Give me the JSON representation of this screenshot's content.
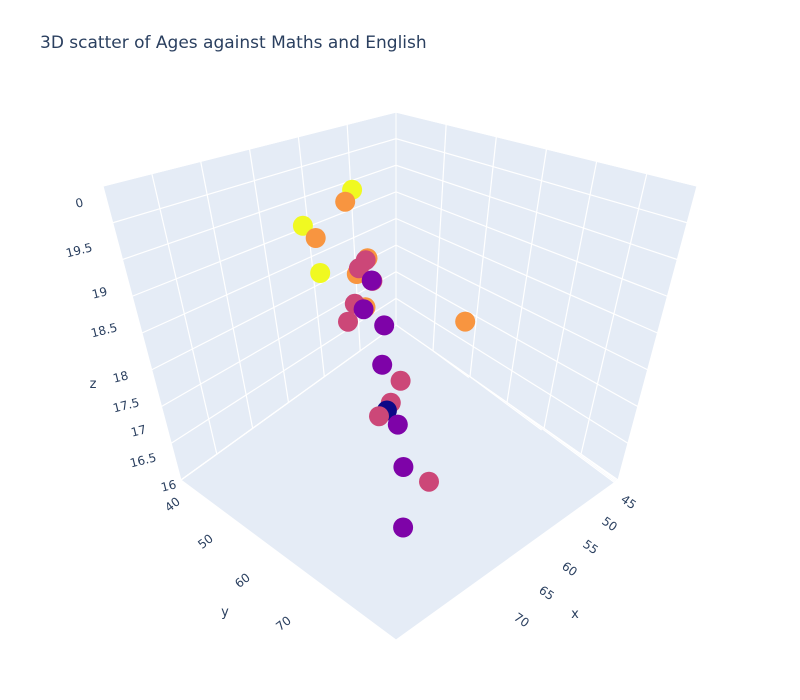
{
  "chart_data": {
    "type": "scatter",
    "title": "3D scatter of Ages against Maths and English",
    "xlabel": "x",
    "ylabel": "y",
    "zlabel": "z",
    "x_ticks": [
      "45",
      "50",
      "55",
      "60",
      "65",
      "70"
    ],
    "y_ticks": [
      "40",
      "50",
      "60",
      "70"
    ],
    "z_ticks": [
      "16",
      "16.5",
      "17",
      "17.5",
      "18",
      "18.5",
      "19",
      "19.5",
      "0"
    ],
    "color_scale": [
      "#0d0887",
      "#7e03a8",
      "#cc4778",
      "#f89540",
      "#f0f921"
    ],
    "points": [
      {
        "x": 44,
        "y": 42,
        "z": 19.9,
        "color": "#f0f921"
      },
      {
        "x": 45,
        "y": 45,
        "z": 19.9,
        "color": "#f89540"
      },
      {
        "x": 52,
        "y": 60,
        "z": 19.8,
        "color": "#f0f921"
      },
      {
        "x": 72,
        "y": 48,
        "z": 19.5,
        "color": "#f89540"
      },
      {
        "x": 52,
        "y": 48,
        "z": 19.4,
        "color": "#f89540"
      },
      {
        "x": 42,
        "y": 52,
        "z": 19.6,
        "color": "#f0f921"
      },
      {
        "x": 43,
        "y": 50,
        "z": 19.3,
        "color": "#f89540"
      },
      {
        "x": 53,
        "y": 48,
        "z": 19.0,
        "color": "#cc4778"
      },
      {
        "x": 50,
        "y": 46,
        "z": 19.1,
        "color": "#cc4778"
      },
      {
        "x": 49,
        "y": 47,
        "z": 18.8,
        "color": "#f89540"
      },
      {
        "x": 54,
        "y": 51,
        "z": 18.7,
        "color": "#f89540"
      },
      {
        "x": 51,
        "y": 50,
        "z": 18.5,
        "color": "#cc4778"
      },
      {
        "x": 52,
        "y": 49,
        "z": 18.4,
        "color": "#7e03a8"
      },
      {
        "x": 47,
        "y": 44,
        "z": 18.6,
        "color": "#cc4778"
      },
      {
        "x": 48,
        "y": 42,
        "z": 18.3,
        "color": "#7e03a8"
      },
      {
        "x": 53,
        "y": 45,
        "z": 17.9,
        "color": "#7e03a8"
      },
      {
        "x": 48,
        "y": 48,
        "z": 17.8,
        "color": "#cc4778"
      },
      {
        "x": 55,
        "y": 48,
        "z": 17.4,
        "color": "#7e03a8"
      },
      {
        "x": 62,
        "y": 52,
        "z": 17.8,
        "color": "#cc4778"
      },
      {
        "x": 60,
        "y": 52,
        "z": 17.2,
        "color": "#cc4778"
      },
      {
        "x": 60,
        "y": 53,
        "z": 17.1,
        "color": "#0d0887"
      },
      {
        "x": 60,
        "y": 55,
        "z": 17.1,
        "color": "#cc4778"
      },
      {
        "x": 59,
        "y": 49,
        "z": 16.5,
        "color": "#7e03a8"
      },
      {
        "x": 65,
        "y": 55,
        "z": 16.4,
        "color": "#7e03a8"
      },
      {
        "x": 67,
        "y": 51,
        "z": 16.0,
        "color": "#cc4778"
      },
      {
        "x": 73,
        "y": 65,
        "z": 16.3,
        "color": "#7e03a8"
      }
    ]
  }
}
